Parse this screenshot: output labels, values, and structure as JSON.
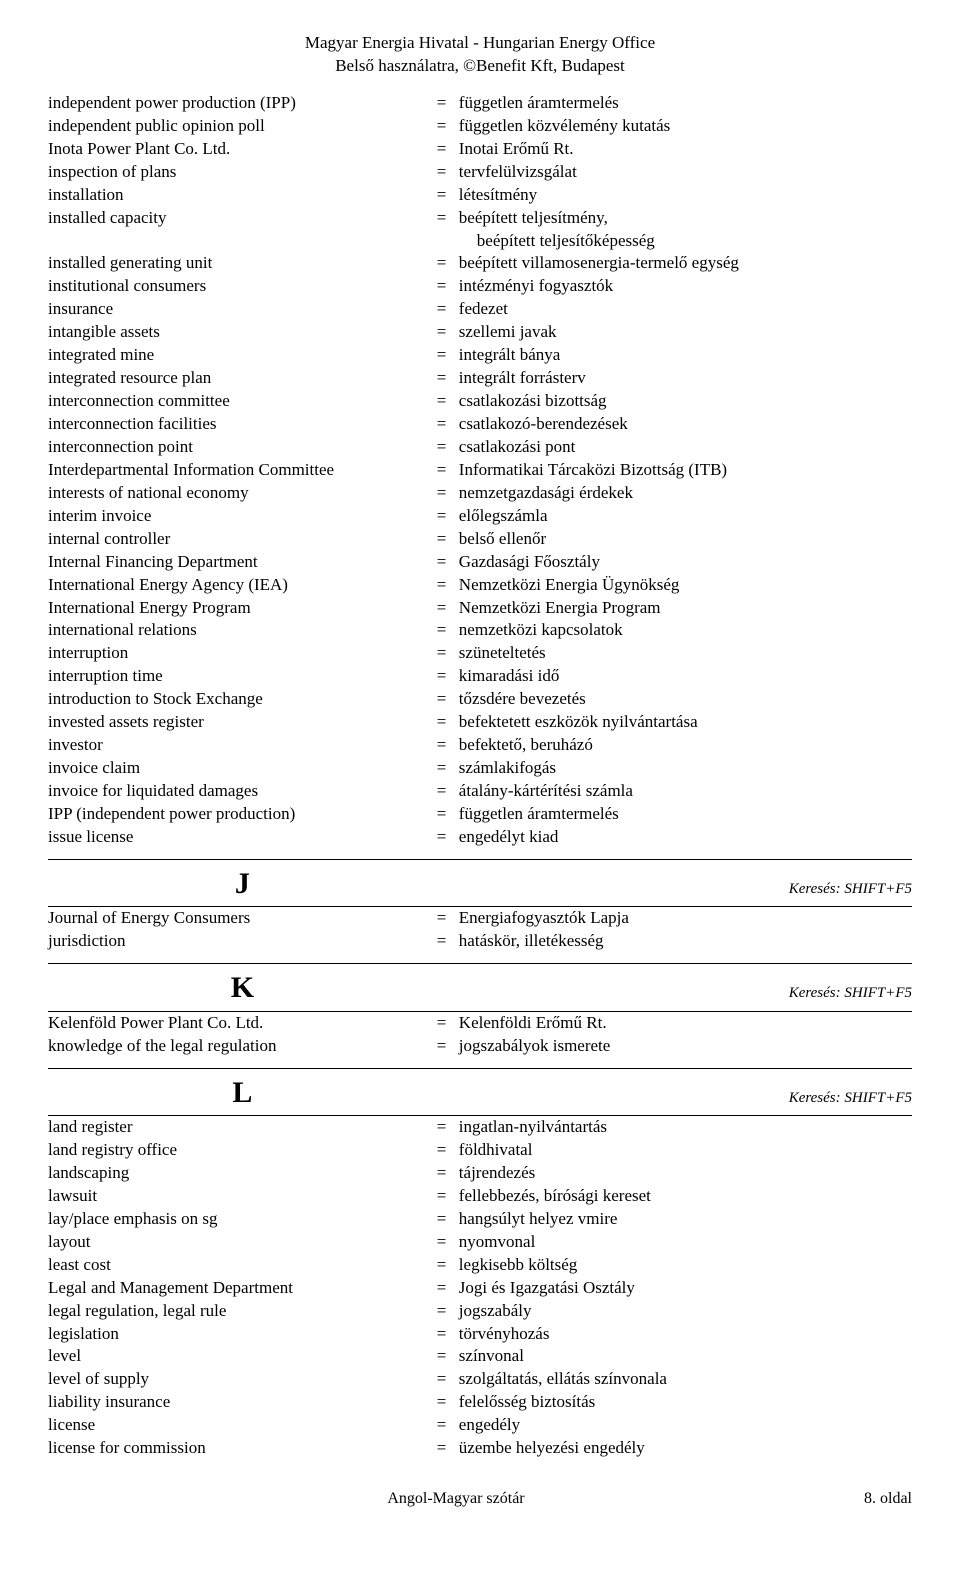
{
  "header": {
    "line1": "Magyar Energia Hivatal - Hungarian Energy Office",
    "line2": "Belső használatra, ©Benefit Kft, Budapest"
  },
  "search_hint": "Keresés: SHIFT+F5",
  "sections": [
    {
      "letter": "",
      "entries": [
        {
          "term": "independent power production (IPP)",
          "def": "független áramtermelés"
        },
        {
          "term": "independent public opinion poll",
          "def": "független közvélemény kutatás"
        },
        {
          "term": "Inota Power Plant Co. Ltd.",
          "def": "Inotai Erőmű Rt."
        },
        {
          "term": "inspection of plans",
          "def": "tervfelülvizsgálat"
        },
        {
          "term": "installation",
          "def": "létesítmény"
        },
        {
          "term": "installed capacity",
          "def": "beépített teljesítmény,",
          "def2": "beépített teljesítőképesség"
        },
        {
          "term": "installed generating unit",
          "def": "beépített villamosenergia-termelő egység"
        },
        {
          "term": "institutional consumers",
          "def": "intézményi fogyasztók"
        },
        {
          "term": "insurance",
          "def": "fedezet"
        },
        {
          "term": "intangible assets",
          "def": "szellemi javak"
        },
        {
          "term": "integrated mine",
          "def": "integrált bánya"
        },
        {
          "term": "integrated resource plan",
          "def": "integrált forrásterv"
        },
        {
          "term": "interconnection committee",
          "def": "csatlakozási bizottság"
        },
        {
          "term": "interconnection facilities",
          "def": "csatlakozó-berendezések"
        },
        {
          "term": "interconnection point",
          "def": "csatlakozási pont"
        },
        {
          "term": "Interdepartmental Information Committee",
          "def": "Informatikai Tárcaközi Bizottság (ITB)"
        },
        {
          "term": "interests of national economy",
          "def": "nemzetgazdasági érdekek"
        },
        {
          "term": "interim invoice",
          "def": "előlegszámla"
        },
        {
          "term": "internal controller",
          "def": "belső ellenőr"
        },
        {
          "term": "Internal Financing Department",
          "def": "Gazdasági Főosztály"
        },
        {
          "term": "International Energy Agency (IEA)",
          "def": "Nemzetközi Energia Ügynökség"
        },
        {
          "term": "International Energy Program",
          "def": "Nemzetközi Energia Program"
        },
        {
          "term": "international relations",
          "def": "nemzetközi kapcsolatok"
        },
        {
          "term": "interruption",
          "def": "szüneteltetés"
        },
        {
          "term": "interruption time",
          "def": "kimaradási idő"
        },
        {
          "term": "introduction to Stock Exchange",
          "def": "tőzsdére bevezetés"
        },
        {
          "term": "invested assets register",
          "def": "befektetett eszközök nyilvántartása"
        },
        {
          "term": "investor",
          "def": "befektető, beruházó"
        },
        {
          "term": "invoice claim",
          "def": "számlakifogás"
        },
        {
          "term": "invoice for liquidated damages",
          "def": "átalány-kártérítési számla"
        },
        {
          "term": "IPP (independent power production)",
          "def": "független áramtermelés"
        },
        {
          "term": "issue license",
          "def": "engedélyt kiad"
        }
      ]
    },
    {
      "letter": "J",
      "entries": [
        {
          "term": "Journal of Energy Consumers",
          "def": "Energiafogyasztók Lapja"
        },
        {
          "term": "jurisdiction",
          "def": "hatáskör, illetékesség"
        }
      ]
    },
    {
      "letter": "K",
      "entries": [
        {
          "term": "Kelenföld Power Plant Co. Ltd.",
          "def": "Kelenföldi Erőmű Rt."
        },
        {
          "term": "knowledge of the legal regulation",
          "def": "jogszabályok ismerete"
        }
      ]
    },
    {
      "letter": "L",
      "entries": [
        {
          "term": "land register",
          "def": "ingatlan-nyilvántartás"
        },
        {
          "term": "land registry office",
          "def": "földhivatal"
        },
        {
          "term": "landscaping",
          "def": "tájrendezés"
        },
        {
          "term": "lawsuit",
          "def": "fellebbezés, bírósági kereset"
        },
        {
          "term": "lay/place emphasis on sg",
          "def": "hangsúlyt helyez vmire"
        },
        {
          "term": "layout",
          "def": "nyomvonal"
        },
        {
          "term": "least cost",
          "def": "legkisebb költség"
        },
        {
          "term": "Legal and Management Department",
          "def": "Jogi és Igazgatási Osztály"
        },
        {
          "term": "legal regulation, legal rule",
          "def": "jogszabály"
        },
        {
          "term": "legislation",
          "def": "törvényhozás"
        },
        {
          "term": "level",
          "def": "színvonal"
        },
        {
          "term": "level of supply",
          "def": "szolgáltatás, ellátás színvonala"
        },
        {
          "term": "liability insurance",
          "def": "felelősség biztosítás"
        },
        {
          "term": "license",
          "def": "engedély"
        },
        {
          "term": "license for commission",
          "def": "üzembe helyezési engedély"
        }
      ]
    }
  ],
  "footer": {
    "center": "Angol-Magyar szótár",
    "right": "8. oldal"
  }
}
